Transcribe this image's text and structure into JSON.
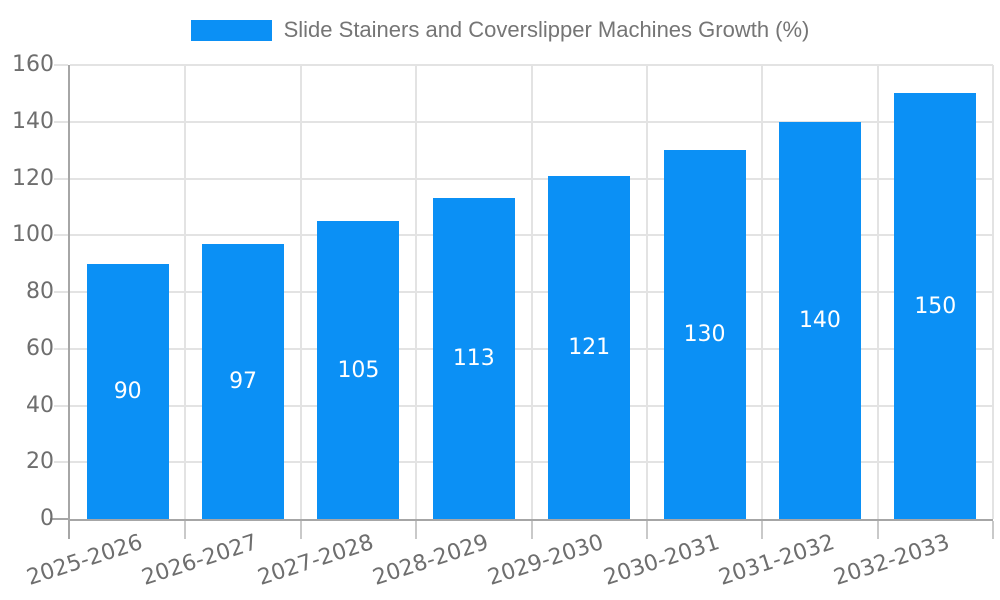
{
  "chart_data": {
    "type": "bar",
    "title": "Slide Stainers and Coverslipper Machines Growth (%)",
    "legend_position": "top-center",
    "categories": [
      "2025-2026",
      "2026-2027",
      "2027-2028",
      "2028-2029",
      "2029-2030",
      "2030-2031",
      "2031-2032",
      "2032-2033"
    ],
    "values": [
      90,
      97,
      105,
      113,
      121,
      130,
      140,
      150
    ],
    "xlabel": "",
    "ylabel": "",
    "ylim": [
      0,
      160
    ],
    "yticks": [
      0,
      20,
      40,
      60,
      80,
      100,
      120,
      140,
      160
    ],
    "grid": true,
    "value_labels": "inside-middle",
    "x_tick_rotation_deg": -18
  },
  "colors": {
    "bar": "#0b90f5",
    "grid": "#e3e3e3",
    "axis": "#a6a6a6",
    "tick_mark": "#c9c9c9",
    "tick_label": "#6e6e6e",
    "value_label": "#ffffff",
    "legend_text": "#757575",
    "background": "#ffffff"
  }
}
